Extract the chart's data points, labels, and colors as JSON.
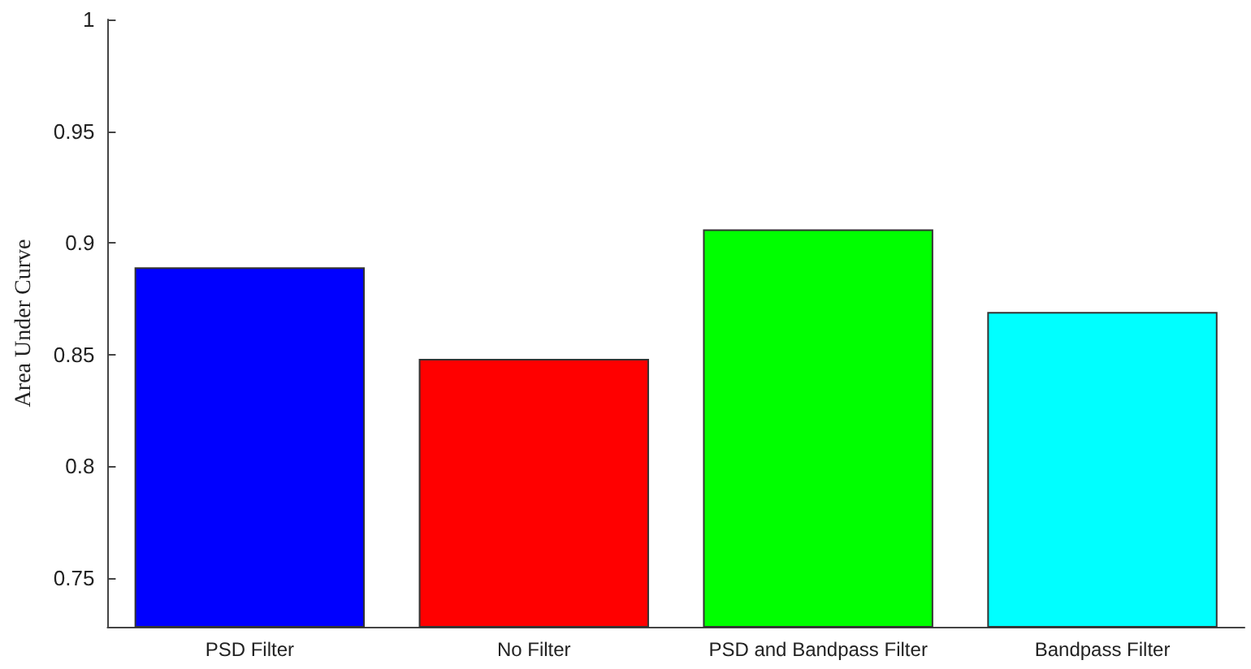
{
  "chart_data": {
    "type": "bar",
    "ylabel": "Area Under Curve",
    "categories": [
      "PSD Filter",
      "No Filter",
      "PSD and Bandpass Filter",
      "Bandpass Filter"
    ],
    "values": [
      0.889,
      0.848,
      0.906,
      0.869
    ],
    "colors": [
      "#0000ff",
      "#ff0000",
      "#00ff00",
      "#00ffff"
    ],
    "ylim": [
      0.728,
      1
    ],
    "yticks": [
      0.75,
      0.8,
      0.85,
      0.9,
      0.95,
      1
    ],
    "grid": false
  }
}
